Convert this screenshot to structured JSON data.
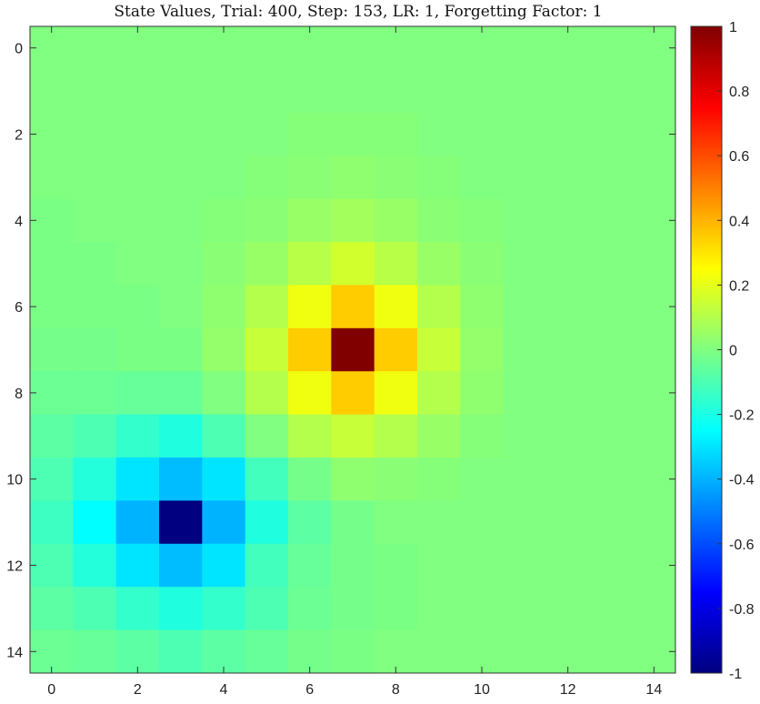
{
  "chart_data": {
    "type": "heatmap",
    "title": "State Values, Trial: 400, Step: 153, LR: 1, Forgetting Factor: 1",
    "xlabel": "",
    "ylabel": "",
    "x": [
      0,
      1,
      2,
      3,
      4,
      5,
      6,
      7,
      8,
      9,
      10,
      11,
      12,
      13,
      14
    ],
    "y": [
      0,
      1,
      2,
      3,
      4,
      5,
      6,
      7,
      8,
      9,
      10,
      11,
      12,
      13,
      14
    ],
    "x_ticks": [
      0,
      2,
      4,
      6,
      8,
      10,
      12,
      14
    ],
    "y_ticks": [
      0,
      2,
      4,
      6,
      8,
      10,
      12,
      14
    ],
    "x_tick_labels": [
      "0",
      "2",
      "4",
      "6",
      "8",
      "10",
      "12",
      "14"
    ],
    "y_tick_labels": [
      "0",
      "2",
      "4",
      "6",
      "8",
      "10",
      "12",
      "14"
    ],
    "xlim": [
      -0.5,
      14.5
    ],
    "ylim": [
      -0.5,
      14.5
    ],
    "y_reversed": true,
    "colormap": "jet",
    "clim": [
      -1,
      1
    ],
    "colorbar_ticks": [
      1,
      0.8,
      0.6,
      0.4,
      0.2,
      0,
      -0.2,
      -0.4,
      -0.6,
      -0.8,
      -1
    ],
    "colorbar_tick_labels": [
      "1",
      "0.8",
      "0.6",
      "0.4",
      "0.2",
      "0",
      "-0.2",
      "-0.4",
      "-0.6",
      "-0.8",
      "-1"
    ],
    "grid": false,
    "values": [
      [
        0,
        0,
        0,
        0,
        0,
        0,
        0,
        0,
        0,
        0,
        0,
        0,
        0,
        0,
        0
      ],
      [
        0,
        0,
        0,
        0,
        0,
        0,
        0,
        0,
        0,
        0,
        0,
        0,
        0,
        0,
        0
      ],
      [
        0,
        0,
        0,
        0,
        0,
        0,
        0.01,
        0.01,
        0.01,
        0,
        0,
        0,
        0,
        0,
        0
      ],
      [
        0,
        0,
        0,
        0,
        0,
        0.01,
        0.02,
        0.03,
        0.02,
        0.01,
        0,
        0,
        0,
        0,
        0
      ],
      [
        -0.01,
        0,
        0,
        0,
        0.01,
        0.02,
        0.05,
        0.07,
        0.05,
        0.02,
        0.01,
        0,
        0,
        0,
        0
      ],
      [
        -0.01,
        -0.01,
        0,
        0,
        0.02,
        0.05,
        0.11,
        0.16,
        0.11,
        0.05,
        0.02,
        0,
        0,
        0,
        0
      ],
      [
        -0.01,
        -0.01,
        -0.01,
        0,
        0.03,
        0.1,
        0.22,
        0.35,
        0.22,
        0.1,
        0.03,
        0,
        0,
        0,
        0
      ],
      [
        -0.02,
        -0.02,
        -0.01,
        -0.01,
        0.04,
        0.14,
        0.35,
        1,
        0.35,
        0.14,
        0.04,
        0,
        0,
        0,
        0
      ],
      [
        -0.04,
        -0.04,
        -0.05,
        -0.05,
        0,
        0.1,
        0.22,
        0.35,
        0.22,
        0.1,
        0.03,
        0,
        0,
        0,
        0
      ],
      [
        -0.07,
        -0.1,
        -0.15,
        -0.19,
        -0.1,
        0,
        0.1,
        0.14,
        0.1,
        0.05,
        0.01,
        0,
        0,
        0,
        0
      ],
      [
        -0.1,
        -0.18,
        -0.3,
        -0.38,
        -0.3,
        -0.12,
        -0.02,
        0.03,
        0.02,
        0.01,
        0,
        0,
        0,
        0,
        0
      ],
      [
        -0.13,
        -0.25,
        -0.4,
        -1,
        -0.4,
        -0.19,
        -0.07,
        -0.02,
        0,
        0,
        0,
        0,
        0,
        0,
        0
      ],
      [
        -0.1,
        -0.18,
        -0.3,
        -0.38,
        -0.3,
        -0.12,
        -0.05,
        -0.02,
        -0.01,
        0,
        0,
        0,
        0,
        0,
        0
      ],
      [
        -0.07,
        -0.1,
        -0.15,
        -0.19,
        -0.15,
        -0.1,
        -0.04,
        -0.02,
        -0.01,
        0,
        0,
        0,
        0,
        0,
        0
      ],
      [
        -0.04,
        -0.05,
        -0.07,
        -0.1,
        -0.07,
        -0.05,
        -0.02,
        -0.01,
        0,
        0,
        0,
        0,
        0,
        0,
        0
      ]
    ]
  }
}
